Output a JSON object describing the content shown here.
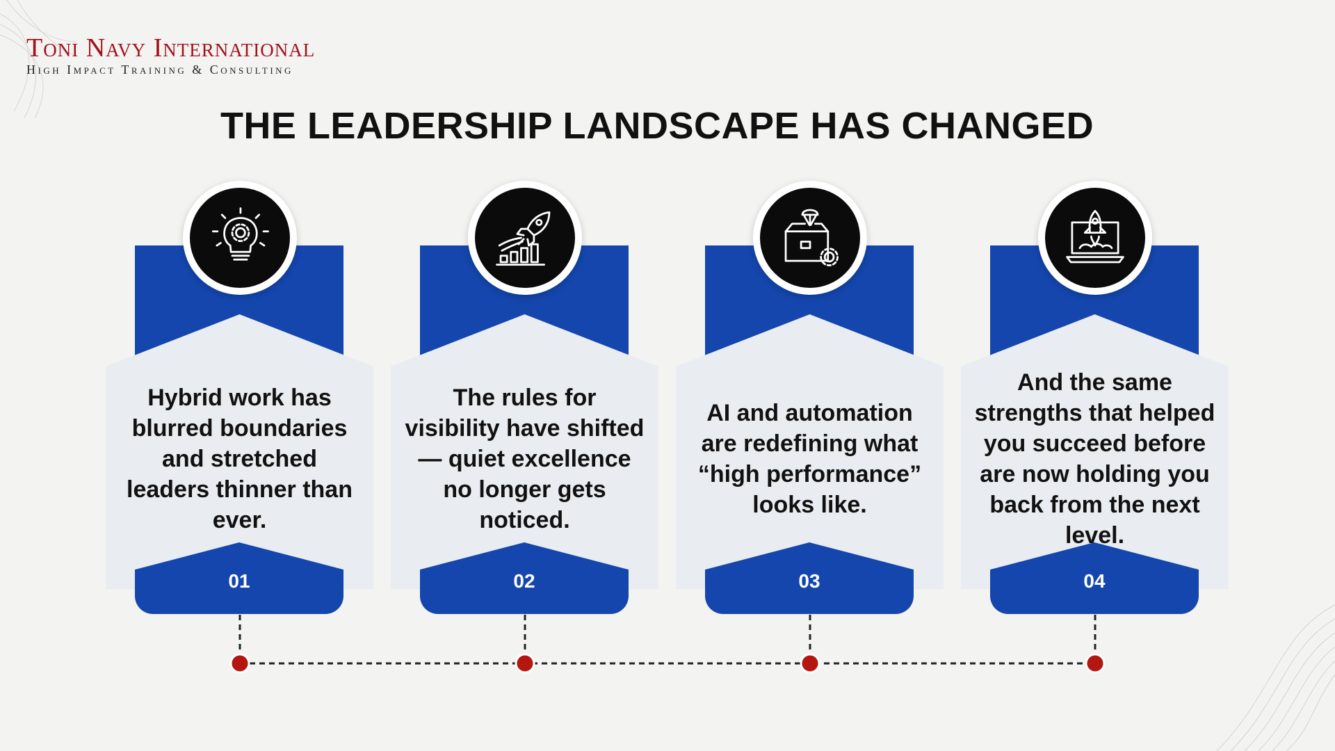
{
  "brand": {
    "name": "Toni Navy International",
    "tagline": "High Impact Training & Consulting"
  },
  "title": "THE LEADERSHIP LANDSCAPE HAS CHANGED",
  "cards": [
    {
      "number": "01",
      "icon": "lightbulb-gear-icon",
      "text": "Hybrid work has blurred boundaries and stretched leaders thinner than ever."
    },
    {
      "number": "02",
      "icon": "rocket-growth-chart-icon",
      "text": "The rules for visibility have shifted — quiet excellence no longer gets noticed."
    },
    {
      "number": "03",
      "icon": "box-parachute-gear-icon",
      "text": "AI and automation are redefining what “high performance” looks like."
    },
    {
      "number": "04",
      "icon": "laptop-rocket-icon",
      "text": "And the same strengths that helped you succeed before are now holding you back from the next level."
    }
  ],
  "colors": {
    "blue": "#1446ad",
    "panel": "#e9ecf0",
    "accent_red": "#a1121a",
    "timeline_dot": "#b3170f"
  }
}
